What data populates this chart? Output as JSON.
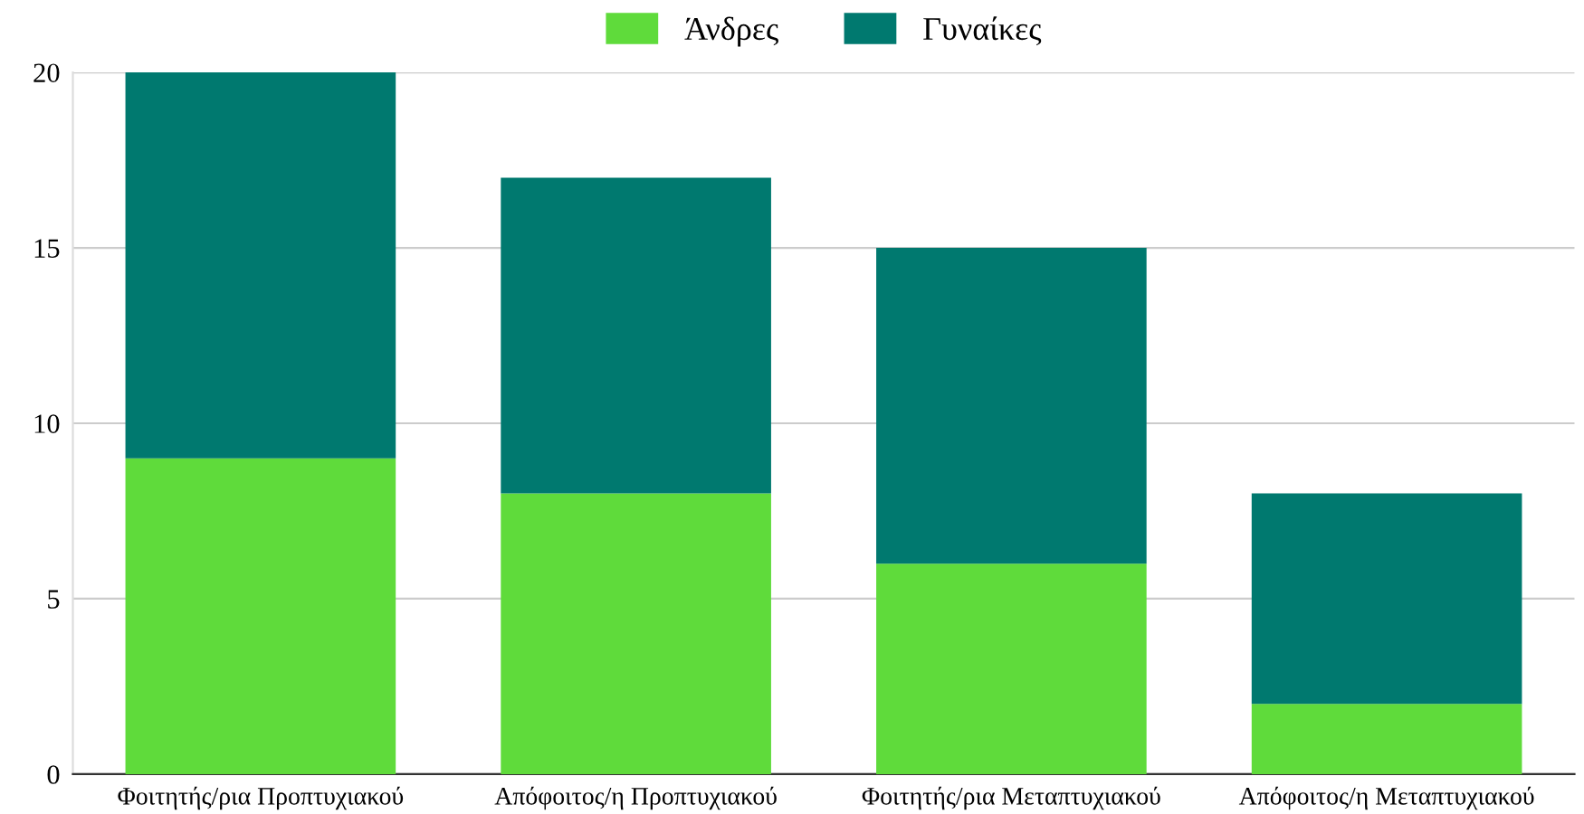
{
  "chart_data": {
    "type": "bar",
    "stacked": true,
    "categories": [
      "Φοιτητής/ρια Προπτυχιακού",
      "Απόφοιτος/η Προπτυχιακού",
      "Φοιτητής/ρια Μεταπτυχιακού",
      "Απόφοιτος/η Μεταπτυχιακού"
    ],
    "series": [
      {
        "name": "Άνδρες",
        "color": "#5fdb3b",
        "values": [
          9,
          8,
          6,
          2
        ]
      },
      {
        "name": "Γυναίκες",
        "color": "#00796f",
        "values": [
          11,
          9,
          9,
          6
        ]
      }
    ],
    "ylim": [
      0,
      20
    ],
    "yticks": [
      0,
      5,
      10,
      15,
      20
    ],
    "grid": "y",
    "legend": "top"
  }
}
